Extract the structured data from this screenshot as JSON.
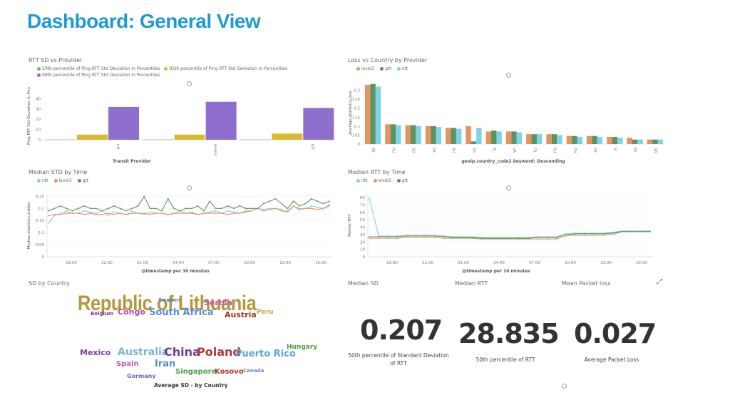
{
  "page": {
    "title": "Dashboard: General View"
  },
  "panels": {
    "rtt_sd": {
      "title": "RTT SD vs Provider",
      "legend": [
        {
          "label": "50th percentile of Ping RTT Std Deviation in Percentiles",
          "color": "#57c17b"
        },
        {
          "label": "95th percentile of Ping RTT Std Deviation in Percentiles",
          "color": "#dab92e"
        },
        {
          "label": "99th percentile of Ping RTT Std Deviation in Percentiles",
          "color": "#8e6fce"
        }
      ]
    },
    "loss_country": {
      "title": "Loss vs Country by Provider",
      "legend": [
        {
          "label": "level3",
          "color": "#e8935f"
        },
        {
          "label": "gtt",
          "color": "#5b9460"
        },
        {
          "label": "ntt",
          "color": "#7fd3e6"
        }
      ]
    },
    "median_std": {
      "title": "Median STD by Time",
      "legend": [
        {
          "label": "ntt",
          "color": "#7fd3e6"
        },
        {
          "label": "level3",
          "color": "#e8935f"
        },
        {
          "label": "gtt",
          "color": "#5b9460"
        }
      ]
    },
    "median_rtt": {
      "title": "Median RTT by Time",
      "legend": [
        {
          "label": "ntt",
          "color": "#7fd3e6"
        },
        {
          "label": "level3",
          "color": "#e8935f"
        },
        {
          "label": "gtt",
          "color": "#5b9460"
        }
      ]
    },
    "sd_country": {
      "title": "SD by Country",
      "caption": "Average SD - by Country"
    },
    "median_sd": {
      "title": "Median SD",
      "value": "0.207",
      "label": "50th percentile of Standard Deviation of RTT"
    },
    "median_rtt_metric": {
      "title": "Median RTT",
      "value": "28.835",
      "label": "50th percentile of RTT"
    },
    "mean_loss": {
      "title": "Mean Packet loss",
      "value": "0.027",
      "label": "Average Packet Loss"
    }
  },
  "wordcloud": [
    {
      "text": "Republic of Lithuania",
      "color": "#b8963c"
    },
    {
      "text": "Sweden",
      "color": "#5a7fc0"
    },
    {
      "text": "Serbia",
      "color": "#c45ab3"
    },
    {
      "text": "Belgium",
      "color": "#8b2f8f"
    },
    {
      "text": "Congo",
      "color": "#b04aa8"
    },
    {
      "text": "South Africa",
      "color": "#5a8ccc"
    },
    {
      "text": "Austria",
      "color": "#9c3a2a"
    },
    {
      "text": "Peru",
      "color": "#d4a33a"
    },
    {
      "text": "Mexico",
      "color": "#7b3fa0"
    },
    {
      "text": "Australia",
      "color": "#7ab5d6"
    },
    {
      "text": "China",
      "color": "#6a3f9c"
    },
    {
      "text": "Poland",
      "color": "#b03838"
    },
    {
      "text": "Puerto Rico",
      "color": "#5aaad0"
    },
    {
      "text": "Hungary",
      "color": "#4a9e3a"
    },
    {
      "text": "Spain",
      "color": "#c45ab3"
    },
    {
      "text": "Iran",
      "color": "#5a8ccc"
    },
    {
      "text": "Singapore",
      "color": "#4aa04a"
    },
    {
      "text": "Kosovo",
      "color": "#b03838"
    },
    {
      "text": "Canada",
      "color": "#6a7fc0"
    },
    {
      "text": "Germany",
      "color": "#7b5fb0"
    }
  ],
  "chart_data": [
    {
      "type": "bar",
      "title": "RTT SD vs Provider",
      "xlabel": "Transit Provider",
      "ylabel": "Ping RTT Std Deviation in Perce",
      "categories": [
        "ntt",
        "level3",
        "gtt"
      ],
      "ylim": [
        0,
        50
      ],
      "yticks": [
        "0",
        "10",
        "20",
        "30",
        "40"
      ],
      "series": [
        {
          "name": "50th percentile of Ping RTT Std Deviation in Percentiles",
          "color": "#57c17b",
          "values": [
            0.2,
            0.2,
            0.2
          ]
        },
        {
          "name": "95th percentile of Ping RTT Std Deviation in Percentiles",
          "color": "#dab92e",
          "values": [
            5,
            5,
            6
          ]
        },
        {
          "name": "99th percentile of Ping RTT Std Deviation in Percentiles",
          "color": "#8e6fce",
          "values": [
            32,
            37,
            31
          ]
        }
      ]
    },
    {
      "type": "bar",
      "title": "Loss vs Country by Provider",
      "xlabel": "geoip.country_code2.keyword: Descending",
      "ylabel": "Average statistics.loss",
      "categories": [
        "RS",
        "HU",
        "RO",
        "ZA",
        "AU",
        "SG",
        "PL",
        "UA",
        "FR",
        "RU",
        "CN",
        "DE",
        "SI",
        "EE",
        "GB"
      ],
      "ylim": [
        0,
        0.35
      ],
      "yticks": [
        "0",
        "0.05",
        "0.1",
        "0.15",
        "0.2",
        "0.25",
        "0.3"
      ],
      "series": [
        {
          "name": "level3",
          "color": "#e8935f",
          "values": [
            0.33,
            0.11,
            0.105,
            0.1,
            0.09,
            0.1,
            0.07,
            0.07,
            0.055,
            0.055,
            0.045,
            0.045,
            0.04,
            0.035,
            0.025
          ]
        },
        {
          "name": "gtt",
          "color": "#5b9460",
          "values": [
            0.335,
            0.11,
            0.105,
            0.1,
            0.09,
            0.015,
            0.075,
            0.07,
            0.055,
            0.055,
            0.045,
            0.045,
            0.04,
            0.025,
            0.025
          ]
        },
        {
          "name": "ntt",
          "color": "#7fd3e6",
          "values": [
            0.32,
            0.105,
            0.1,
            0.095,
            0.085,
            0.09,
            0.07,
            0.065,
            0.055,
            0.05,
            0.04,
            0.04,
            0.035,
            0.025,
            0.025
          ]
        }
      ]
    },
    {
      "type": "line",
      "title": "Median STD by Time",
      "xlabel": "@timestamp per 30 minutes",
      "ylabel": "Median statistics.stddev",
      "xticks": [
        "19:00",
        "22:00",
        "01:00",
        "04:00",
        "07:00",
        "10:00",
        "13:00",
        "16:00"
      ],
      "yticks": [
        "0",
        "0.05",
        "0.1",
        "0.15",
        "0.2",
        "0.25"
      ],
      "ylim": [
        0,
        0.26
      ],
      "series": [
        {
          "name": "ntt",
          "color": "#7fd3e6",
          "values": [
            0.14,
            0.17,
            0.18,
            0.19,
            0.18,
            0.18,
            0.19,
            0.185,
            0.18,
            0.19,
            0.17,
            0.185,
            0.18,
            0.175,
            0.19,
            0.18,
            0.175,
            0.185,
            0.18,
            0.18,
            0.175,
            0.18,
            0.19,
            0.18,
            0.185,
            0.175,
            0.18,
            0.185,
            0.19,
            0.18,
            0.19,
            0.185,
            0.18,
            0.19,
            0.19,
            0.2,
            0.195,
            0.2,
            0.2,
            0.195,
            0.19,
            0.21,
            0.2,
            0.2,
            0.21,
            0.205,
            0.2,
            0.21
          ]
        },
        {
          "name": "level3",
          "color": "#e8935f",
          "values": [
            0.17,
            0.175,
            0.175,
            0.18,
            0.18,
            0.18,
            0.175,
            0.18,
            0.175,
            0.175,
            0.18,
            0.175,
            0.18,
            0.175,
            0.18,
            0.18,
            0.18,
            0.175,
            0.18,
            0.18,
            0.175,
            0.18,
            0.18,
            0.18,
            0.18,
            0.175,
            0.18,
            0.18,
            0.18,
            0.18,
            0.175,
            0.18,
            0.18,
            0.185,
            0.19,
            0.2,
            0.19,
            0.195,
            0.2,
            0.19,
            0.185,
            0.21,
            0.195,
            0.2,
            0.2,
            0.195,
            0.2,
            0.215
          ]
        },
        {
          "name": "gtt",
          "color": "#5b9460",
          "values": [
            0.19,
            0.2,
            0.21,
            0.2,
            0.19,
            0.2,
            0.21,
            0.2,
            0.2,
            0.19,
            0.2,
            0.21,
            0.2,
            0.19,
            0.2,
            0.21,
            0.25,
            0.2,
            0.2,
            0.19,
            0.24,
            0.2,
            0.19,
            0.2,
            0.2,
            0.21,
            0.19,
            0.23,
            0.2,
            0.2,
            0.21,
            0.2,
            0.21,
            0.2,
            0.2,
            0.2,
            0.22,
            0.23,
            0.24,
            0.22,
            0.2,
            0.23,
            0.21,
            0.22,
            0.24,
            0.23,
            0.22,
            0.23
          ]
        }
      ]
    },
    {
      "type": "line",
      "title": "Median RTT by Time",
      "xlabel": "@timestamp per 10 minutes",
      "ylabel": "Median RTT",
      "xticks": [
        "19:00",
        "22:00",
        "01:00",
        "04:00",
        "07:00",
        "10:00",
        "13:00",
        "16:00"
      ],
      "yticks": [
        "0",
        "10",
        "20",
        "30",
        "40",
        "50",
        "60",
        "70",
        "80"
      ],
      "ylim": [
        0,
        85
      ],
      "series": [
        {
          "name": "ntt",
          "color": "#7fd3e6",
          "values": [
            80,
            28,
            28,
            28,
            29,
            29,
            29,
            29,
            28,
            27,
            27,
            27,
            26,
            26,
            26,
            26,
            26,
            26,
            27,
            27,
            27,
            31,
            32,
            32,
            32,
            32,
            33,
            35,
            35,
            35,
            35
          ]
        },
        {
          "name": "level3",
          "color": "#e8935f",
          "values": [
            25,
            25,
            25,
            25,
            26,
            26,
            26,
            26,
            25,
            25,
            25,
            25,
            24,
            24,
            24,
            24,
            24,
            24,
            24,
            24,
            24,
            28,
            29,
            29,
            29,
            29,
            30,
            34,
            34,
            34,
            34
          ]
        },
        {
          "name": "gtt",
          "color": "#5b9460",
          "values": [
            27,
            27,
            27,
            27,
            28,
            28,
            28,
            28,
            27,
            26,
            26,
            26,
            25,
            25,
            25,
            25,
            25,
            25,
            26,
            26,
            26,
            30,
            31,
            31,
            31,
            31,
            32,
            34,
            34,
            34,
            34
          ]
        }
      ]
    }
  ]
}
